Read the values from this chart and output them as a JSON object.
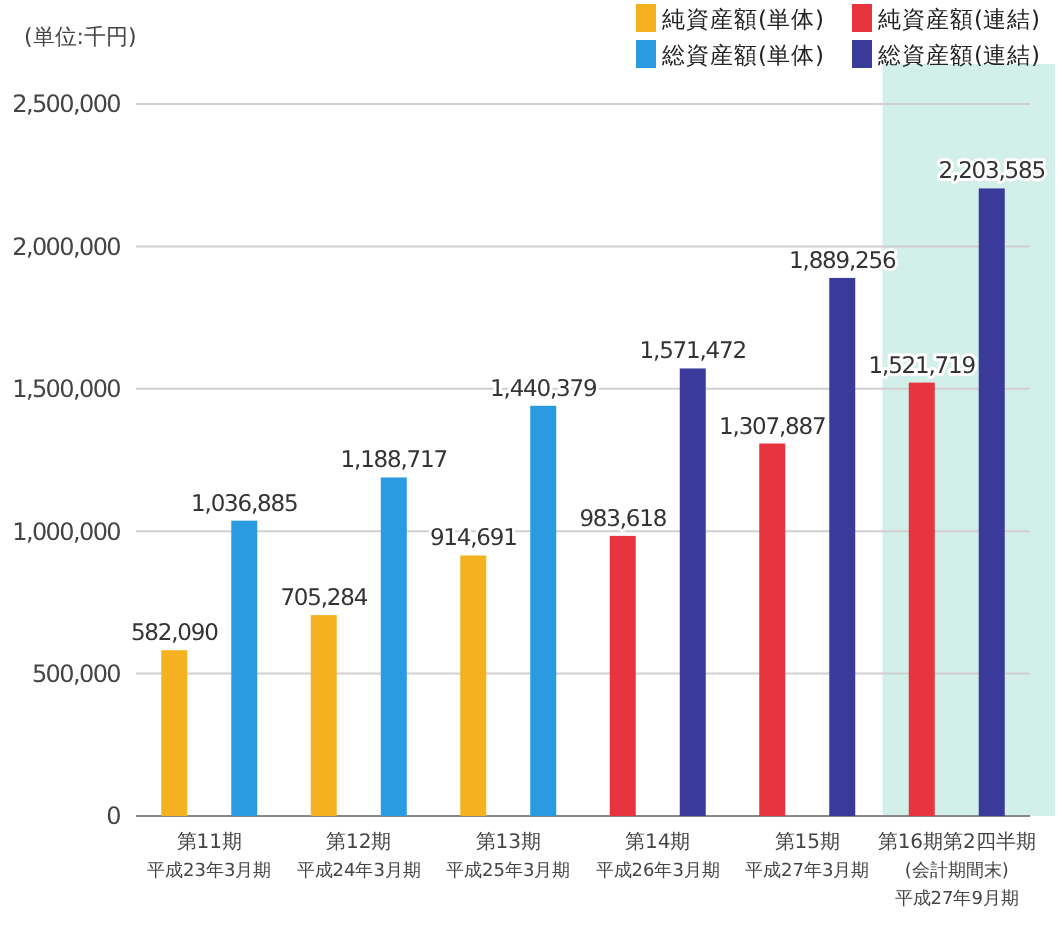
{
  "chart_data": {
    "type": "bar",
    "ylabel": "(単位:千円)",
    "categories": [
      "第11期平成23年3月期",
      "第12期平成24年3月期",
      "第13期平成25年3月期",
      "第14期平成26年3月期",
      "第15期平成27年3月期",
      "第16期第2四半期(会計期間末)平成27年9月期"
    ],
    "series": [
      {
        "name": "純資産額(単体)",
        "color": "#f5b120",
        "values": [
          582090,
          705284,
          914691,
          null,
          null,
          null
        ],
        "value_labels": [
          "582,090",
          "705,284",
          "914,691",
          null,
          null,
          null
        ]
      },
      {
        "name": "純資産額(連結)",
        "color": "#e8343f",
        "values": [
          null,
          null,
          null,
          983618,
          1307887,
          1521719
        ],
        "value_labels": [
          null,
          null,
          null,
          "983,618",
          "1,307,887",
          "1,521,719"
        ]
      },
      {
        "name": "総資産額(単体)",
        "color": "#2a9be0",
        "values": [
          1036885,
          1188717,
          1440379,
          null,
          null,
          null
        ],
        "value_labels": [
          "1,036,885",
          "1,188,717",
          "1,440,379",
          null,
          null,
          null
        ]
      },
      {
        "name": "総資産額(連結)",
        "color": "#3a3a9a",
        "values": [
          null,
          null,
          null,
          1571472,
          1889256,
          2203585
        ],
        "value_labels": [
          null,
          null,
          null,
          "1,571,472",
          "1,889,256",
          "2,203,585"
        ]
      }
    ],
    "ylim": [
      0,
      2500000
    ],
    "yticks": [
      {
        "value": 0,
        "label": "0"
      },
      {
        "value": 500000,
        "label": "500,000"
      },
      {
        "value": 1000000,
        "label": "1,000,000"
      },
      {
        "value": 1500000,
        "label": "1,500,000"
      },
      {
        "value": 2000000,
        "label": "2,000,000"
      },
      {
        "value": 2500000,
        "label": "2,500,000"
      }
    ],
    "bands": [
      {
        "axis": "x",
        "from": "第16期第2四半期(会計期間末)平成27年9月期",
        "to": "第16期第2四半期(会計期間末)平成27年9月期",
        "color": "#d3efea"
      }
    ],
    "grid": "y",
    "legend": "top right"
  }
}
